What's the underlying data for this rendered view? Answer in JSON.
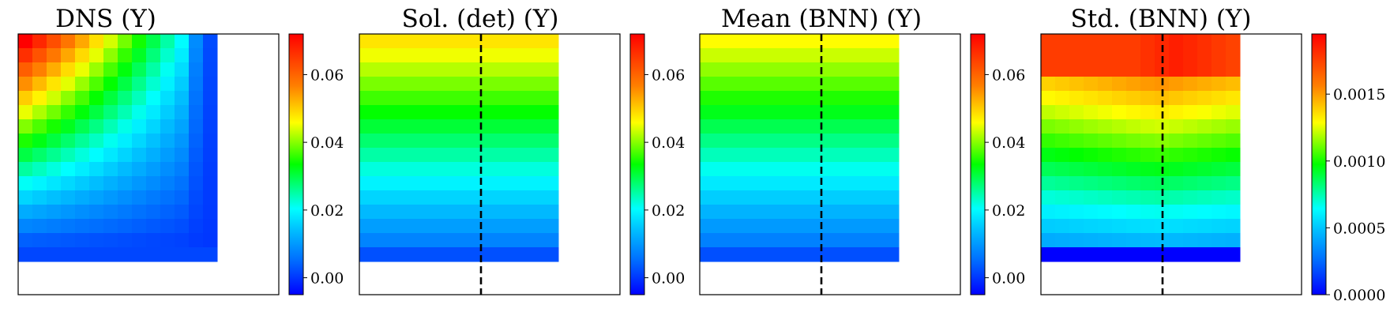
{
  "chart_data": [
    {
      "type": "heatmap",
      "title": "DNS (Y)",
      "grid_rows": 16,
      "grid_cols": 14,
      "field_pattern": "corner_decay",
      "max_value": 0.072,
      "clim": [
        -0.005,
        0.072
      ],
      "colorbar_ticks": [
        0.0,
        0.02,
        0.04,
        0.06
      ],
      "colorbar_tick_labels": [
        "0.00",
        "0.02",
        "0.04",
        "0.06"
      ],
      "colormap": "jet",
      "grid": false,
      "dashed_midline": false
    },
    {
      "type": "heatmap",
      "title": "Sol. (det) (Y)",
      "grid_rows": 16,
      "grid_cols": 14,
      "field_pattern": "vertical_gradient",
      "max_value": 0.048,
      "clim": [
        -0.005,
        0.072
      ],
      "colorbar_ticks": [
        0.0,
        0.02,
        0.04,
        0.06
      ],
      "colorbar_tick_labels": [
        "0.00",
        "0.02",
        "0.04",
        "0.06"
      ],
      "colormap": "jet",
      "grid": false,
      "dashed_midline": true
    },
    {
      "type": "heatmap",
      "title": "Mean (BNN) (Y)",
      "grid_rows": 16,
      "grid_cols": 14,
      "field_pattern": "vertical_gradient",
      "max_value": 0.046,
      "clim": [
        -0.005,
        0.072
      ],
      "colorbar_ticks": [
        0.0,
        0.02,
        0.04,
        0.06
      ],
      "colorbar_tick_labels": [
        "0.00",
        "0.02",
        "0.04",
        "0.06"
      ],
      "colormap": "jet",
      "grid": false,
      "dashed_midline": true
    },
    {
      "type": "heatmap",
      "title": "Std. (BNN) (Y)",
      "grid_rows": 16,
      "grid_cols": 14,
      "field_pattern": "std_peak_top",
      "max_value": 0.0019,
      "clim": [
        0.0,
        0.00195
      ],
      "colorbar_ticks": [
        0.0,
        0.0005,
        0.001,
        0.0015
      ],
      "colorbar_tick_labels": [
        "0.0000",
        "0.0005",
        "0.0010",
        "0.0015"
      ],
      "colormap": "jet",
      "grid": false,
      "dashed_midline": true
    }
  ]
}
